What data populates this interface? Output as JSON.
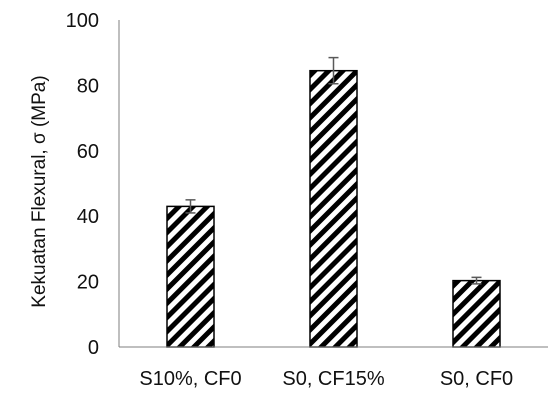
{
  "chart_data": {
    "type": "bar",
    "title": "",
    "xlabel": "",
    "ylabel": "Kekuatan Flexural, σ (MPa)",
    "categories": [
      "S10%, CF0",
      "S0, CF15%",
      "S0, CF0"
    ],
    "values": [
      43,
      84.5,
      20.3
    ],
    "error": [
      2,
      4,
      1
    ],
    "ylim": [
      0,
      100
    ],
    "yticks": [
      0,
      20,
      40,
      60,
      80,
      100
    ],
    "grid": false,
    "legend": "none",
    "bar_style": "diagonal-hatch",
    "colors": {
      "hatch": "#000000",
      "background": "#ffffff",
      "axis": "#7f7f7f",
      "error_bar": "#595959"
    }
  }
}
